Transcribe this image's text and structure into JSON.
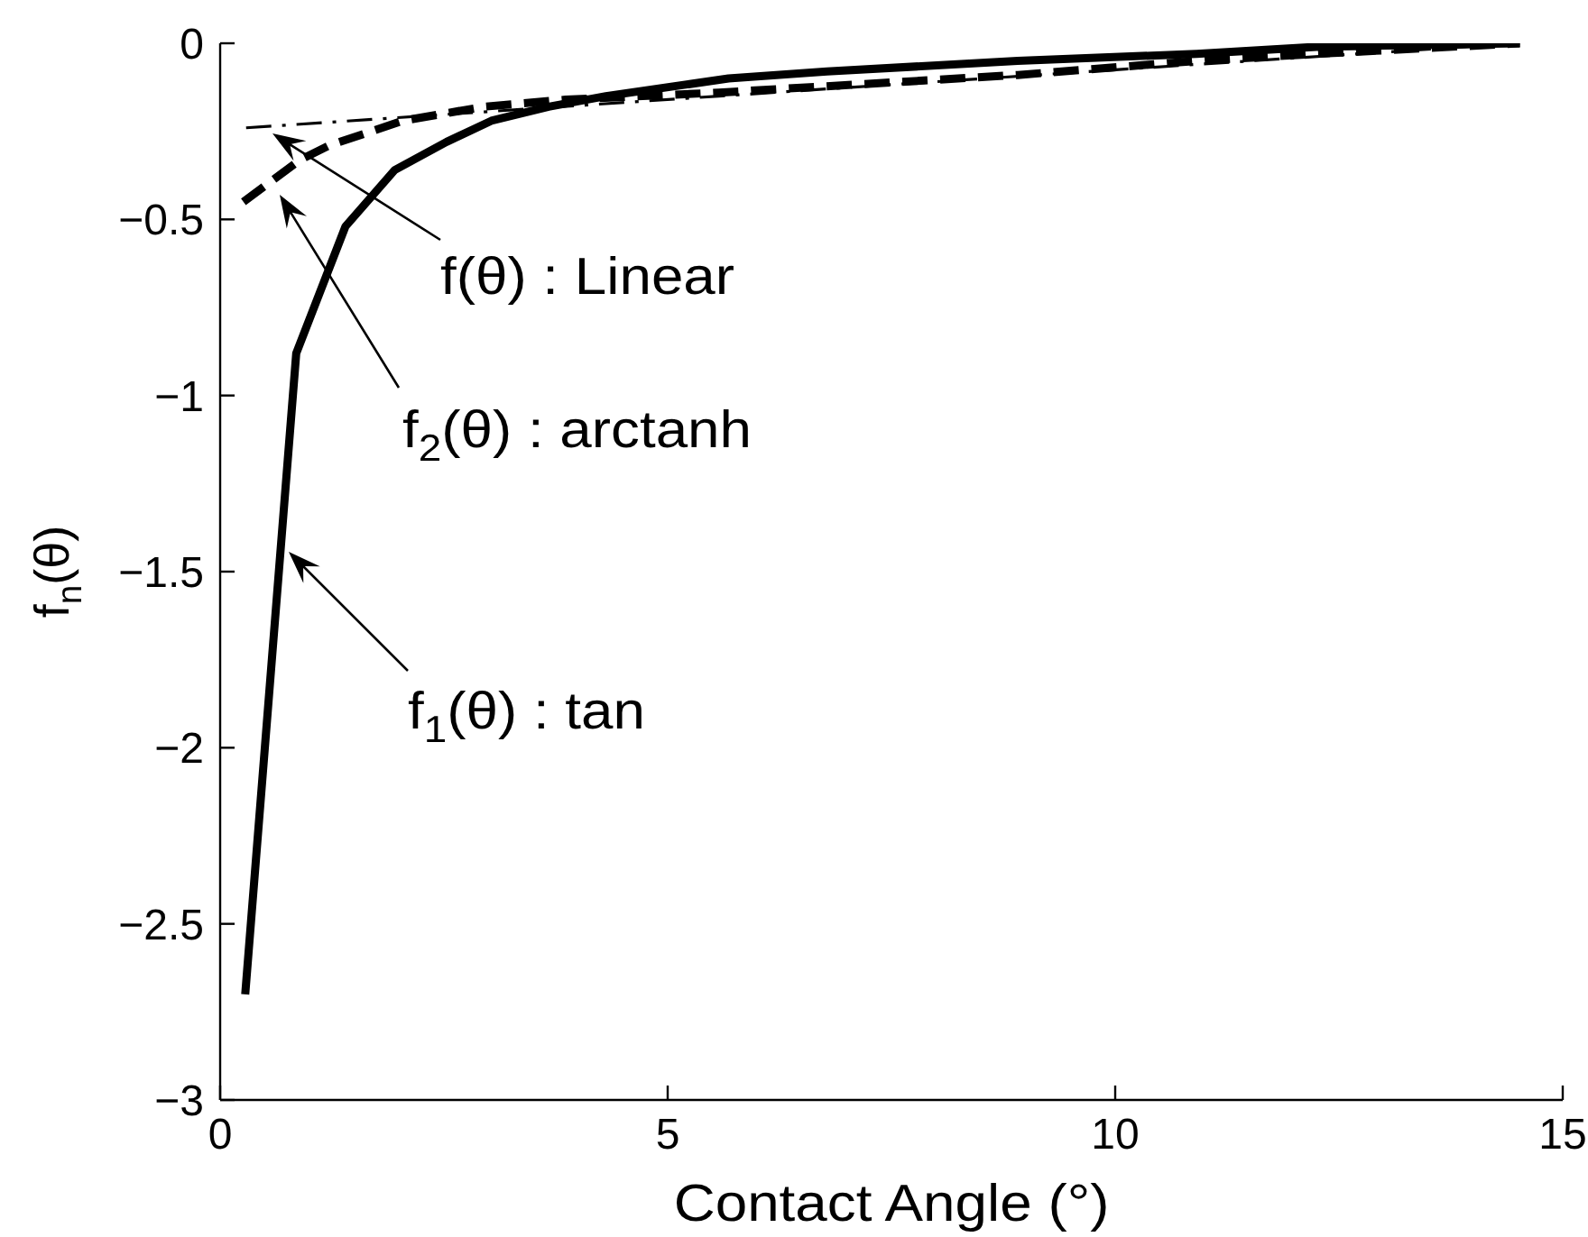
{
  "chart_data": {
    "type": "line",
    "xlabel": "Contact Angle (°)",
    "ylabel": "f$_{n}$(θ)",
    "xlim": [
      0,
      15
    ],
    "xticks": [
      0,
      5,
      10,
      15
    ],
    "ylim": [
      -3,
      0
    ],
    "yticks": [
      -3,
      -2.5,
      -2,
      -1.5,
      -1,
      -0.5,
      0
    ],
    "marker": "none",
    "series": [
      {
        "color": "#000000",
        "line_style": "solid",
        "x": [
          0.28,
          0.85,
          1.4,
          1.95,
          2.53,
          3.03,
          3.67,
          4.31,
          5.68,
          6.78,
          8.91,
          10.91,
          12.25,
          14.52
        ],
        "values": [
          -2.7,
          -0.88,
          -0.52,
          -0.36,
          -0.28,
          -0.22,
          -0.18,
          -0.15,
          -0.1,
          -0.08,
          -0.05,
          -0.03,
          -0.01,
          0
        ]
      },
      {
        "color": "#000000",
        "line_style": "dashed",
        "x": [
          0.26,
          0.9,
          1.22,
          2.04,
          2.95,
          3.86,
          5.57,
          8.91,
          10.91,
          12.25,
          14.52
        ],
        "values": [
          -0.45,
          -0.33,
          -0.29,
          -0.22,
          -0.18,
          -0.16,
          -0.14,
          -0.09,
          -0.05,
          -0.03,
          0
        ]
      },
      {
        "color": "#000000",
        "line_style": "dashdot",
        "x": [
          0.29,
          5.57,
          10.91,
          14.52
        ],
        "values": [
          -0.24,
          -0.15,
          -0.06,
          0
        ]
      }
    ],
    "annotations": [
      "f(θ) : Linear",
      "f$_{2}$(θ) : arctanh",
      "f$_{1}$(θ) : tan"
    ]
  }
}
